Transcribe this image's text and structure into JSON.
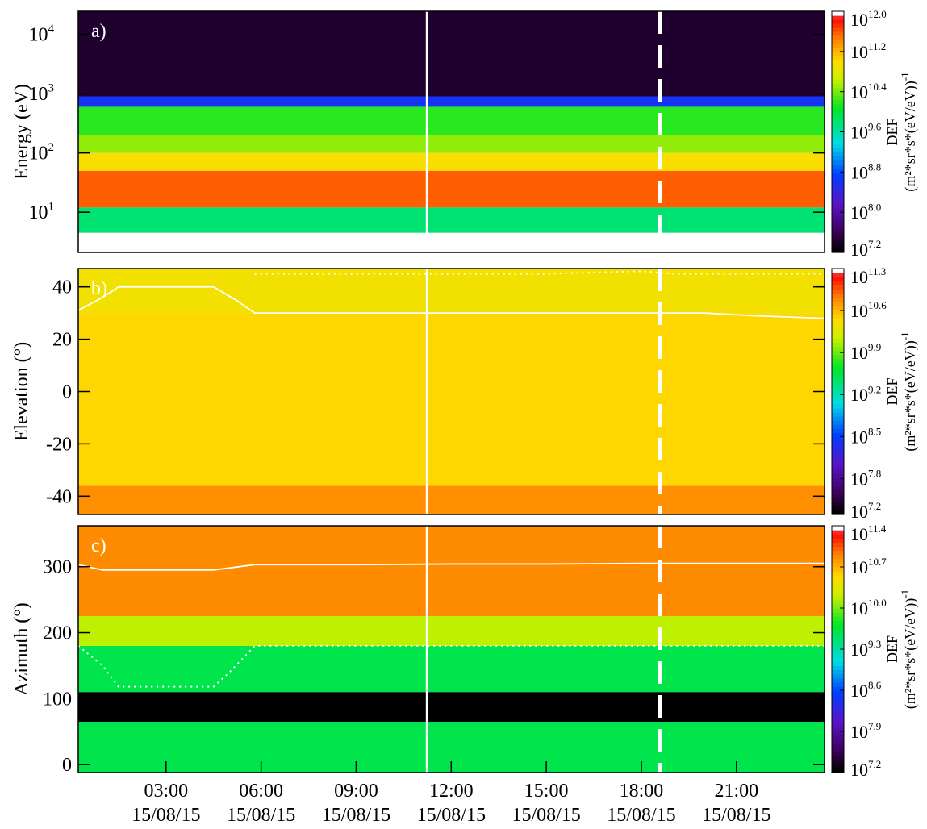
{
  "chart_data": [
    {
      "type": "heatmap",
      "label": "a)",
      "ylabel": "Energy (eV)",
      "log": true,
      "xlim": [
        0.23,
        23.78
      ],
      "ylim": [
        2.1,
        24500
      ],
      "yticks": [
        {
          "value": 10,
          "label": "10",
          "exponent": "1"
        },
        {
          "value": 100,
          "label": "10",
          "exponent": "2"
        },
        {
          "value": 1000,
          "label": "10",
          "exponent": "3"
        },
        {
          "value": 10000,
          "label": "10",
          "exponent": "4"
        }
      ],
      "colorbar": {
        "title": "DEF",
        "unit": "(m²*sr*s*(eV/eV))",
        "unit_exponent": "-1",
        "clim": [
          7.2,
          12.0
        ],
        "ticks": [
          {
            "value": 7.2,
            "label": "10",
            "exponent": "7.2"
          },
          {
            "value": 8.0,
            "label": "10",
            "exponent": "8.0"
          },
          {
            "value": 8.8,
            "label": "10",
            "exponent": "8.8"
          },
          {
            "value": 9.6,
            "label": "10",
            "exponent": "9.6"
          },
          {
            "value": 10.4,
            "label": "10",
            "exponent": "10.4"
          },
          {
            "value": 11.2,
            "label": "10",
            "exponent": "11.2"
          },
          {
            "value": 12.0,
            "label": "10",
            "exponent": "12.0"
          }
        ]
      },
      "rows": [
        {
          "y": [
            4.5,
            12
          ],
          "level": 9.8
        },
        {
          "y": [
            12,
            50
          ],
          "level": 11.6
        },
        {
          "y": [
            50,
            100
          ],
          "level": 11.0
        },
        {
          "y": [
            100,
            200
          ],
          "level": 10.5
        },
        {
          "y": [
            200,
            600
          ],
          "level": 10.2
        },
        {
          "y": [
            600,
            900
          ],
          "level": 8.6
        },
        {
          "y": [
            900,
            24500
          ],
          "level": 7.4
        }
      ],
      "lines": [],
      "markers": [
        {
          "x": 11.23,
          "style": "solid"
        },
        {
          "x": 18.59,
          "style": "dashed"
        }
      ]
    },
    {
      "type": "heatmap",
      "label": "b)",
      "ylabel": "Elevation (°)",
      "log": false,
      "xlim": [
        0.23,
        23.78
      ],
      "ylim": [
        -47,
        47
      ],
      "yticks": [
        -40,
        -20,
        0,
        20,
        40
      ],
      "colorbar": {
        "title": "DEF",
        "unit": "(m²*sr*s*(eV/eV))",
        "unit_exponent": "-1",
        "clim": [
          7.2,
          11.3
        ],
        "ticks": [
          {
            "value": 7.2,
            "label": "10",
            "exponent": "7.2"
          },
          {
            "value": 7.8,
            "label": "10",
            "exponent": "7.8"
          },
          {
            "value": 8.5,
            "label": "10",
            "exponent": "8.5"
          },
          {
            "value": 9.2,
            "label": "10",
            "exponent": "9.2"
          },
          {
            "value": 9.9,
            "label": "10",
            "exponent": "9.9"
          },
          {
            "value": 10.6,
            "label": "10",
            "exponent": "10.6"
          },
          {
            "value": 11.3,
            "label": "10",
            "exponent": "11.3"
          }
        ]
      },
      "rows": [
        {
          "y": [
            -47,
            -36
          ],
          "level": 10.8
        },
        {
          "y": [
            -36,
            30
          ],
          "level": 10.5
        },
        {
          "y": [
            30,
            47
          ],
          "level": 10.4
        }
      ],
      "lines": [
        {
          "style": "solid",
          "x": [
            0.23,
            1,
            1.5,
            4.5,
            5.2,
            5.8,
            9,
            11,
            14,
            17,
            20,
            21.5,
            23.78
          ],
          "values": [
            31,
            36,
            40,
            40,
            35,
            30,
            30,
            30,
            30,
            30,
            30,
            29,
            28
          ]
        },
        {
          "style": "dotted",
          "x": [
            5.8,
            9,
            12,
            15,
            18,
            19,
            21,
            23.78
          ],
          "values": [
            45,
            45,
            45,
            45,
            46,
            45,
            45,
            45
          ]
        }
      ],
      "markers": [
        {
          "x": 11.23,
          "style": "solid"
        },
        {
          "x": 18.59,
          "style": "dashed"
        }
      ]
    },
    {
      "type": "heatmap",
      "label": "c)",
      "ylabel": "Azimuth (°)",
      "log": false,
      "xlim": [
        0.23,
        23.78
      ],
      "ylim": [
        -12,
        362
      ],
      "yticks": [
        0,
        100,
        200,
        300
      ],
      "xticks": [
        {
          "value": 3,
          "label": "03:00",
          "date": "15/08/15"
        },
        {
          "value": 6,
          "label": "06:00",
          "date": "15/08/15"
        },
        {
          "value": 9,
          "label": "09:00",
          "date": "15/08/15"
        },
        {
          "value": 12,
          "label": "12:00",
          "date": "15/08/15"
        },
        {
          "value": 15,
          "label": "15:00",
          "date": "15/08/15"
        },
        {
          "value": 18,
          "label": "18:00",
          "date": "15/08/15"
        },
        {
          "value": 21,
          "label": "21:00",
          "date": "15/08/15"
        }
      ],
      "colorbar": {
        "title": "DEF",
        "unit": "(m²*sr*s*(eV/eV))",
        "unit_exponent": "-1",
        "clim": [
          7.2,
          11.4
        ],
        "ticks": [
          {
            "value": 7.2,
            "label": "10",
            "exponent": "7.2"
          },
          {
            "value": 7.9,
            "label": "10",
            "exponent": "7.9"
          },
          {
            "value": 8.6,
            "label": "10",
            "exponent": "8.6"
          },
          {
            "value": 9.3,
            "label": "10",
            "exponent": "9.3"
          },
          {
            "value": 10.0,
            "label": "10",
            "exponent": "10.0"
          },
          {
            "value": 10.7,
            "label": "10",
            "exponent": "10.7"
          },
          {
            "value": 11.4,
            "label": "10",
            "exponent": "11.4"
          }
        ]
      },
      "rows": [
        {
          "y": [
            -12,
            65
          ],
          "level": 9.6
        },
        {
          "y": [
            65,
            110
          ],
          "level": 7.2
        },
        {
          "y": [
            110,
            180
          ],
          "level": 9.6
        },
        {
          "y": [
            180,
            225
          ],
          "level": 10.2
        },
        {
          "y": [
            225,
            362
          ],
          "level": 10.9
        }
      ],
      "lines": [
        {
          "style": "solid",
          "x": [
            0.23,
            1,
            4.5,
            5.8,
            9,
            12,
            15,
            18,
            21,
            23.78
          ],
          "values": [
            303,
            295,
            295,
            303,
            303,
            304,
            304,
            305,
            305,
            305
          ]
        },
        {
          "style": "dotted",
          "x": [
            0.23,
            1,
            1.5,
            4.5,
            5,
            5.8,
            23.78
          ],
          "values": [
            180,
            150,
            118,
            118,
            140,
            180,
            180
          ]
        }
      ],
      "markers": [
        {
          "x": 11.23,
          "style": "solid"
        },
        {
          "x": 18.59,
          "style": "dashed"
        }
      ]
    }
  ]
}
